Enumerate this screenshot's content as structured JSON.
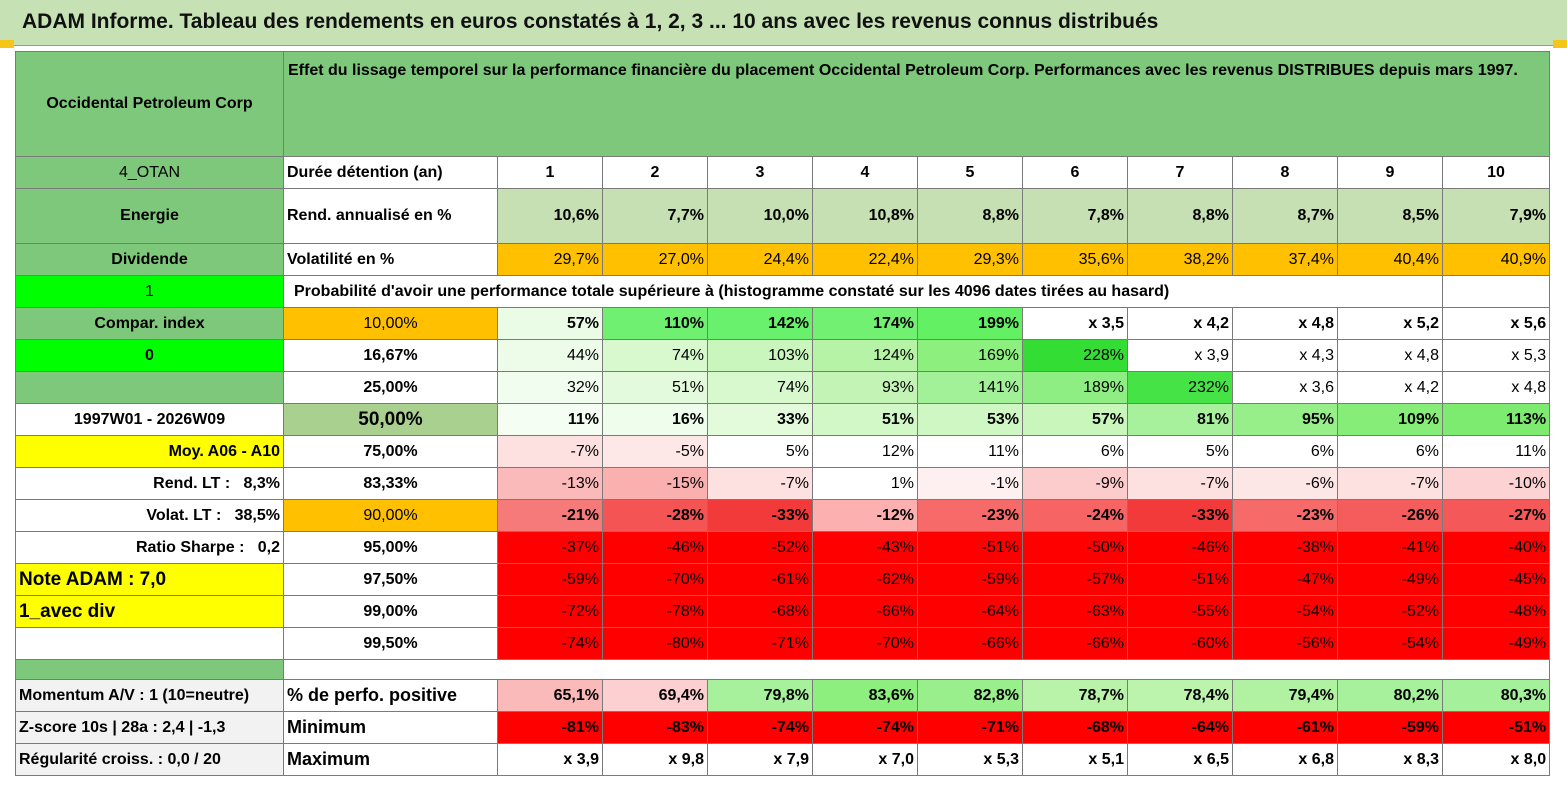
{
  "title": "ADAM Informe. Tableau des rendements en euros constatés à 1, 2, 3 ... 10 ans avec les revenus connus distribués",
  "header": {
    "name": "Occidental Petroleum Corp",
    "description": "Effet du lissage temporel sur la performance financière du placement Occidental Petroleum Corp. Performances avec les revenus DISTRIBUES depuis mars 1997."
  },
  "left": {
    "code": "4_OTAN",
    "sector": "Energie",
    "type": "Dividende",
    "flag1": "1",
    "compar": "Compar. index",
    "flag0": "0",
    "period": "1997W01 - 2026W09",
    "moy": "Moy. A06 - A10",
    "rend_label": "Rend. LT :",
    "rend_value": "8,3%",
    "volat_label": "Volat. LT :",
    "volat_value": "38,5%",
    "sharpe_label": "Ratio Sharpe :",
    "sharpe_value": "0,2",
    "note": "Note ADAM : 7,0",
    "div": "1_avec div",
    "momentum": "Momentum A/V : 1 (10=neutre)",
    "zscore": "Z-score 10s | 28a : 2,4 | -1,3",
    "regularite": "Régularité croiss. : 0,0 / 20"
  },
  "labels": {
    "duree": "Durée détention (an)",
    "rend": "Rend. annualisé en %",
    "volat": "Volatilité en %",
    "proba": "Probabilité d'avoir une performance totale supérieure à (histogramme constaté sur les 4096 dates tirées au hasard)",
    "perf_pos": "% de perfo. positive",
    "minimum": "Minimum",
    "maximum": "Maximum"
  },
  "years": [
    "1",
    "2",
    "3",
    "4",
    "5",
    "6",
    "7",
    "8",
    "9",
    "10"
  ],
  "rend": [
    "10,6%",
    "7,7%",
    "10,0%",
    "10,8%",
    "8,8%",
    "7,8%",
    "8,8%",
    "8,7%",
    "8,5%",
    "7,9%"
  ],
  "volat": [
    "29,7%",
    "27,0%",
    "24,4%",
    "22,4%",
    "29,3%",
    "35,6%",
    "38,2%",
    "37,4%",
    "40,4%",
    "40,9%"
  ],
  "probs": [
    {
      "p": "10,00%",
      "v": [
        "57%",
        "110%",
        "142%",
        "174%",
        "199%",
        "x 3,5",
        "x 4,2",
        "x 4,8",
        "x 5,2",
        "x 5,6"
      ]
    },
    {
      "p": "16,67%",
      "v": [
        "44%",
        "74%",
        "103%",
        "124%",
        "169%",
        "228%",
        "x 3,9",
        "x 4,3",
        "x 4,8",
        "x 5,3"
      ]
    },
    {
      "p": "25,00%",
      "v": [
        "32%",
        "51%",
        "74%",
        "93%",
        "141%",
        "189%",
        "232%",
        "x 3,6",
        "x 4,2",
        "x 4,8"
      ]
    },
    {
      "p": "50,00%",
      "v": [
        "11%",
        "16%",
        "33%",
        "51%",
        "53%",
        "57%",
        "81%",
        "95%",
        "109%",
        "113%"
      ]
    },
    {
      "p": "75,00%",
      "v": [
        "-7%",
        "-5%",
        "5%",
        "12%",
        "11%",
        "6%",
        "5%",
        "6%",
        "6%",
        "11%"
      ]
    },
    {
      "p": "83,33%",
      "v": [
        "-13%",
        "-15%",
        "-7%",
        "1%",
        "-1%",
        "-9%",
        "-7%",
        "-6%",
        "-7%",
        "-10%"
      ]
    },
    {
      "p": "90,00%",
      "v": [
        "-21%",
        "-28%",
        "-33%",
        "-12%",
        "-23%",
        "-24%",
        "-33%",
        "-23%",
        "-26%",
        "-27%"
      ]
    },
    {
      "p": "95,00%",
      "v": [
        "-37%",
        "-46%",
        "-52%",
        "-43%",
        "-51%",
        "-50%",
        "-46%",
        "-38%",
        "-41%",
        "-40%"
      ]
    },
    {
      "p": "97,50%",
      "v": [
        "-59%",
        "-70%",
        "-61%",
        "-62%",
        "-59%",
        "-57%",
        "-51%",
        "-47%",
        "-49%",
        "-45%"
      ]
    },
    {
      "p": "99,00%",
      "v": [
        "-72%",
        "-78%",
        "-68%",
        "-66%",
        "-64%",
        "-63%",
        "-55%",
        "-54%",
        "-52%",
        "-48%"
      ]
    },
    {
      "p": "99,50%",
      "v": [
        "-74%",
        "-80%",
        "-71%",
        "-70%",
        "-66%",
        "-66%",
        "-60%",
        "-56%",
        "-54%",
        "-49%"
      ]
    }
  ],
  "perf_pos": [
    "65,1%",
    "69,4%",
    "79,8%",
    "83,6%",
    "82,8%",
    "78,7%",
    "78,4%",
    "79,4%",
    "80,2%",
    "80,3%"
  ],
  "minimum": [
    "-81%",
    "-83%",
    "-74%",
    "-74%",
    "-71%",
    "-68%",
    "-64%",
    "-61%",
    "-59%",
    "-51%"
  ],
  "maximum": [
    "x 3,9",
    "x 9,8",
    "x 7,9",
    "x 7,0",
    "x 5,3",
    "x 5,1",
    "x 6,5",
    "x 6,8",
    "x 8,3",
    "x 8,0"
  ],
  "colors": {
    "header_green": "#7ec87c",
    "light_green": "#c6e0b4",
    "orange": "#ffc000",
    "bright_green": "#00ff00",
    "yellow": "#ffff00",
    "red": "#ff0000"
  }
}
